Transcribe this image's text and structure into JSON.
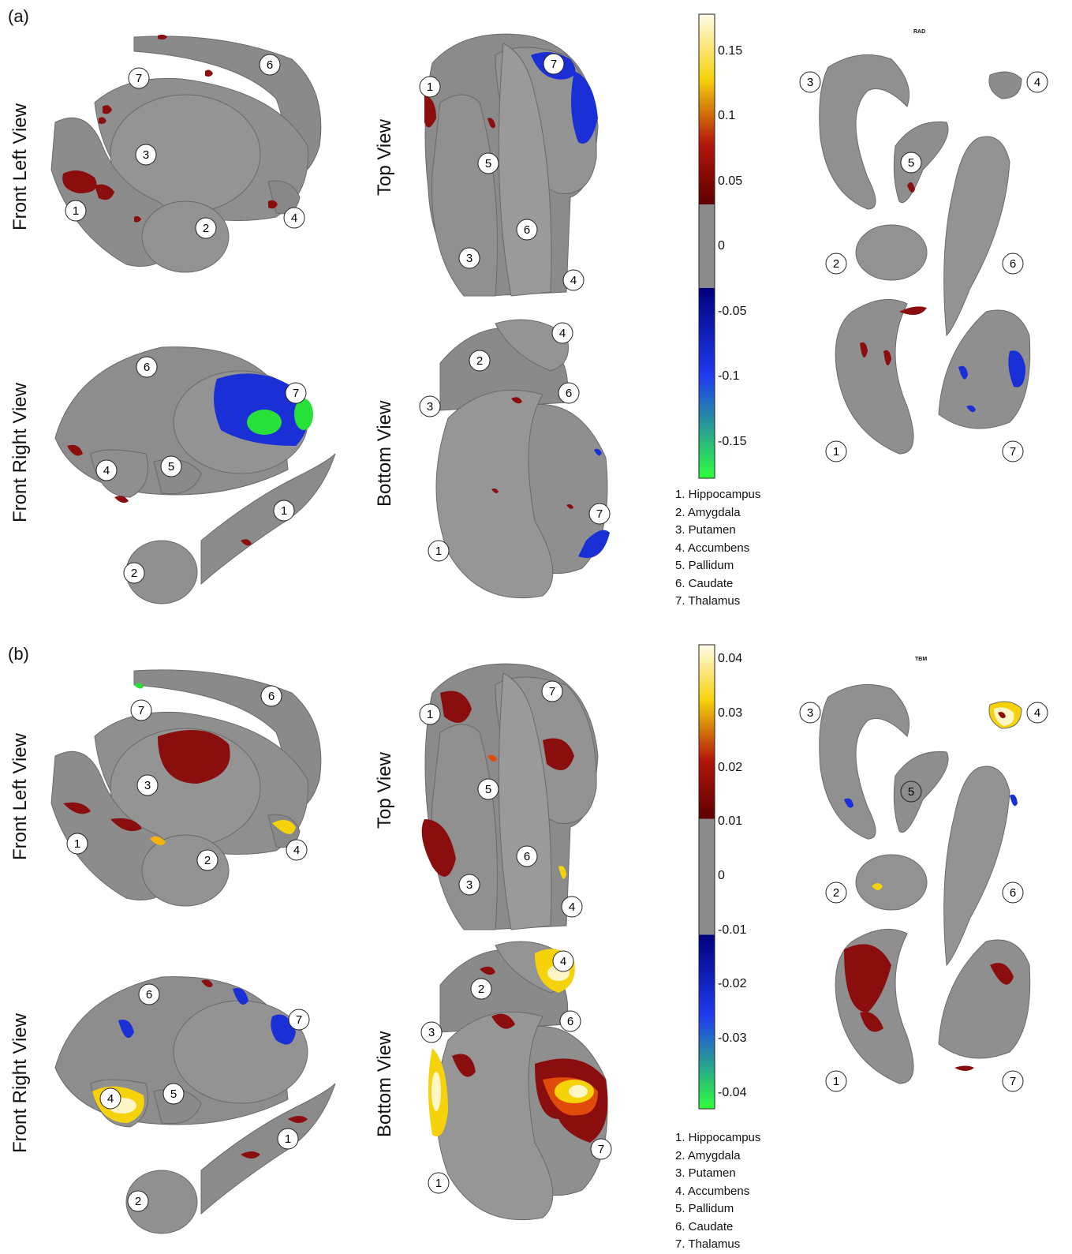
{
  "panels": [
    {
      "label": "(a)",
      "views": [
        "Front Left View",
        "Top View",
        "Front Right View",
        "Bottom View"
      ],
      "measure": "RAD",
      "colorbar_ticks": [
        "0.15",
        "0.1",
        "0.05",
        "0",
        "-0.05",
        "-0.1",
        "-0.15"
      ],
      "legend": [
        "1. Hippocampus",
        "2. Amygdala",
        "3. Putamen",
        "4. Accumbens",
        "5. Pallidum",
        "6. Caudate",
        "7. Thalamus"
      ]
    },
    {
      "label": "(b)",
      "views": [
        "Front Left View",
        "Top View",
        "Front Right View",
        "Bottom View"
      ],
      "measure": "TBM",
      "colorbar_ticks": [
        "0.04",
        "0.03",
        "0.02",
        "0.01",
        "0",
        "-0.01",
        "-0.02",
        "-0.03",
        "-0.04"
      ],
      "legend": [
        "1. Hippocampus",
        "2. Amygdala",
        "3. Putamen",
        "4. Accumbens",
        "5. Pallidum",
        "6. Caudate",
        "7. Thalamus"
      ]
    }
  ],
  "colors": {
    "surface": "#8c8c8c",
    "surface_dark": "#6e6e6e",
    "red": "#8b0e0e",
    "blue": "#1a2fd6",
    "green": "#27e03a",
    "yellow": "#f6d20a",
    "white_hot": "#fff6c8"
  },
  "structure_numbers": [
    "1",
    "2",
    "3",
    "4",
    "5",
    "6",
    "7"
  ]
}
